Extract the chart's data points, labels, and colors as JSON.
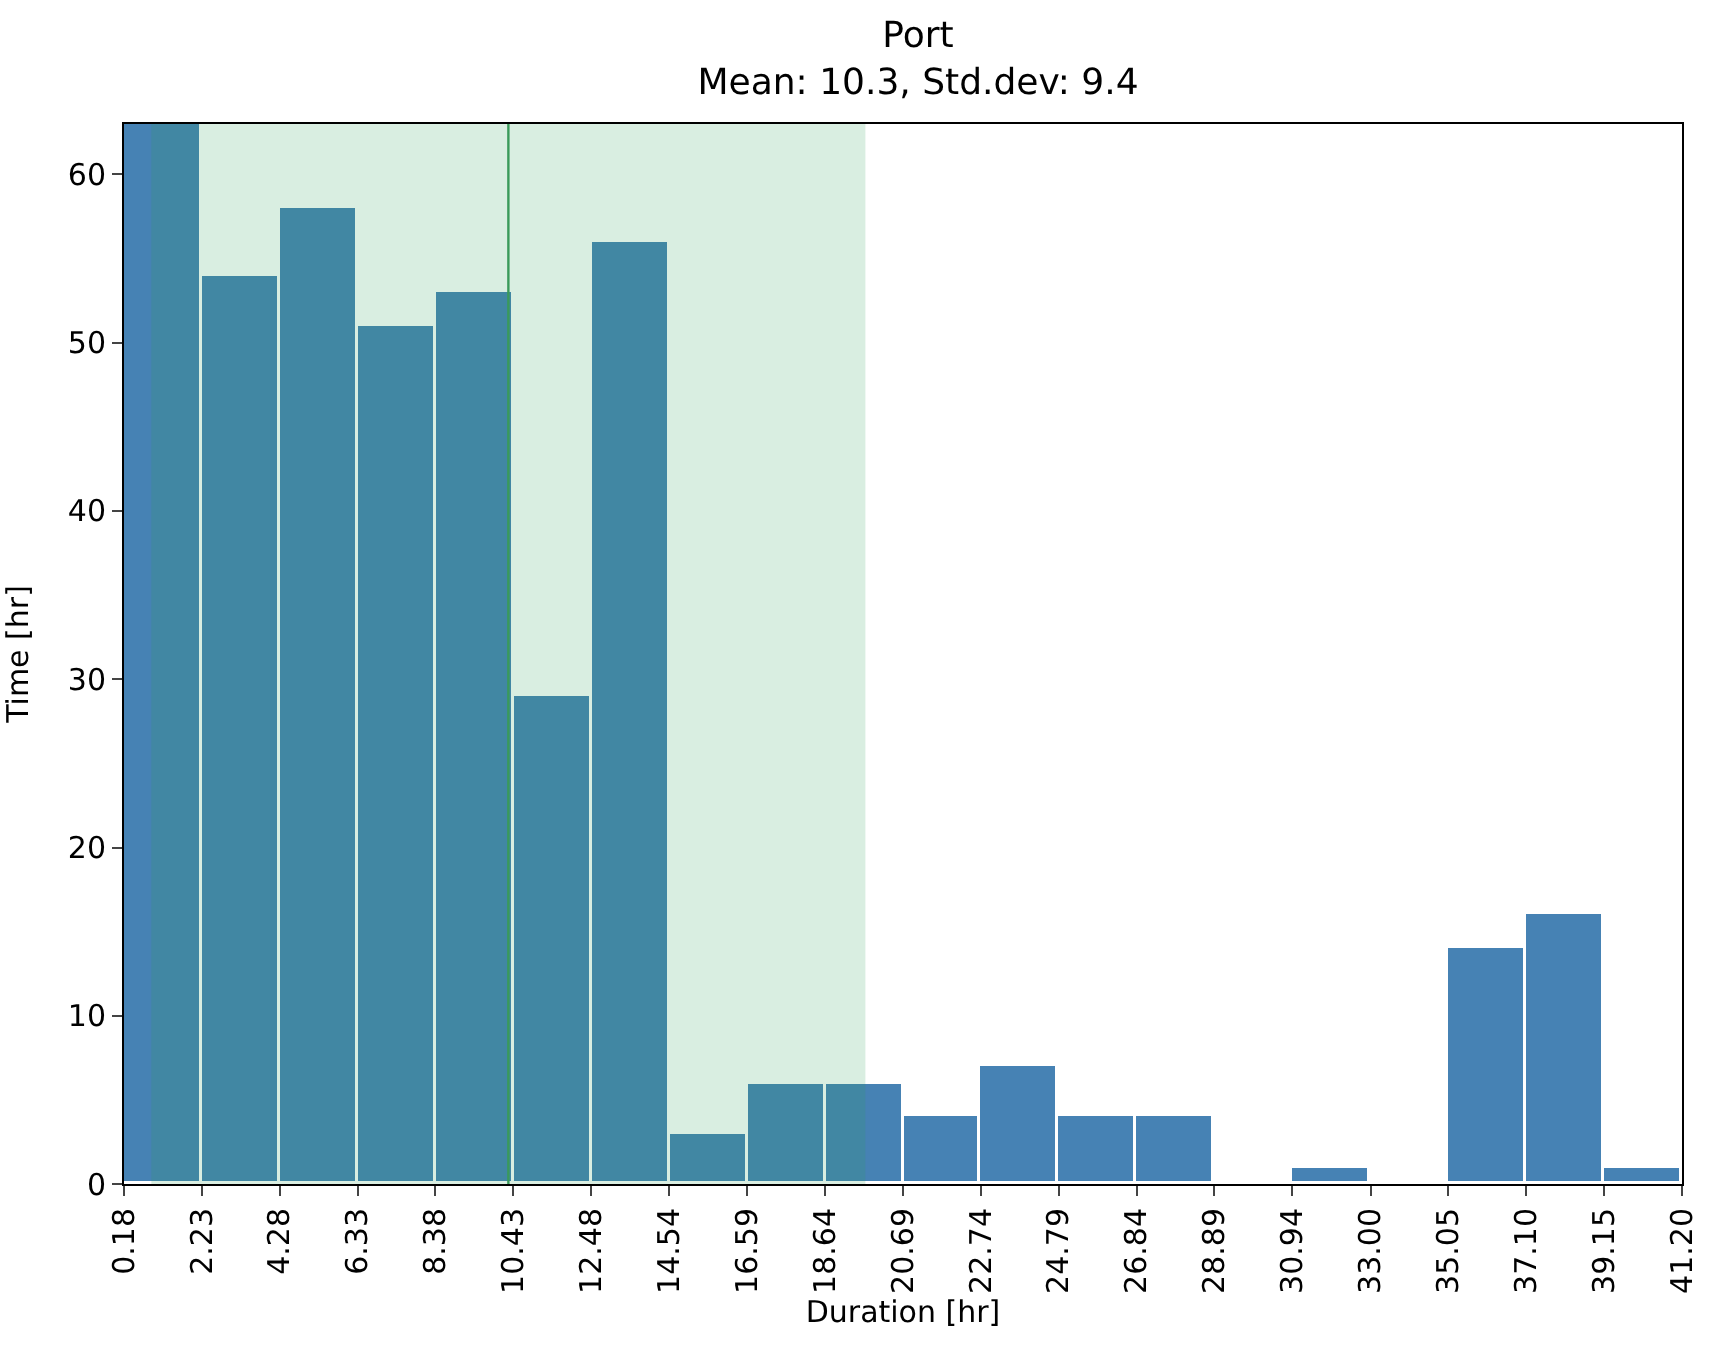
{
  "chart_data": {
    "type": "histogram",
    "title": "Port",
    "subtitle": "Mean: 10.3, Std.dev: 9.4",
    "xlabel": "Duration [hr]",
    "ylabel": "Time [hr]",
    "bins": [
      0.18,
      2.23,
      4.28,
      6.33,
      8.38,
      10.43,
      12.48,
      14.54,
      16.59,
      18.64,
      20.69,
      22.74,
      24.79,
      26.84,
      28.89,
      30.94,
      33.0,
      35.05,
      37.1,
      39.15,
      41.2
    ],
    "values": [
      63,
      54,
      58,
      51,
      53,
      29,
      56,
      3,
      6,
      6,
      4,
      7,
      4,
      4,
      0,
      1,
      0,
      14,
      16,
      1
    ],
    "color": "#4682b4",
    "xlim": [
      0.18,
      41.2
    ],
    "xticks": [
      {
        "value": 0.18,
        "label": "0.18"
      },
      {
        "value": 2.23,
        "label": "2.23"
      },
      {
        "value": 4.28,
        "label": "4.28"
      },
      {
        "value": 6.33,
        "label": "6.33"
      },
      {
        "value": 8.38,
        "label": "8.38"
      },
      {
        "value": 10.43,
        "label": "10.43"
      },
      {
        "value": 12.48,
        "label": "12.48"
      },
      {
        "value": 14.54,
        "label": "14.54"
      },
      {
        "value": 16.59,
        "label": "16.59"
      },
      {
        "value": 18.64,
        "label": "18.64"
      },
      {
        "value": 20.69,
        "label": "20.69"
      },
      {
        "value": 22.74,
        "label": "22.74"
      },
      {
        "value": 24.79,
        "label": "24.79"
      },
      {
        "value": 26.84,
        "label": "26.84"
      },
      {
        "value": 28.89,
        "label": "28.89"
      },
      {
        "value": 30.94,
        "label": "30.94"
      },
      {
        "value": 33.0,
        "label": "33.00"
      },
      {
        "value": 35.05,
        "label": "35.05"
      },
      {
        "value": 37.1,
        "label": "37.10"
      },
      {
        "value": 39.15,
        "label": "39.15"
      },
      {
        "value": 41.2,
        "label": "41.20"
      }
    ],
    "ylim": [
      0,
      63
    ],
    "yticks": [
      0,
      10,
      20,
      30,
      40,
      50,
      60
    ],
    "ref_lines": [
      {
        "axis": "x",
        "value": 10.3,
        "color": "#3a9a5a"
      }
    ],
    "bands": [
      {
        "axis": "x",
        "from": 0.9,
        "to": 19.7,
        "color": "#2ca05a"
      }
    ]
  }
}
